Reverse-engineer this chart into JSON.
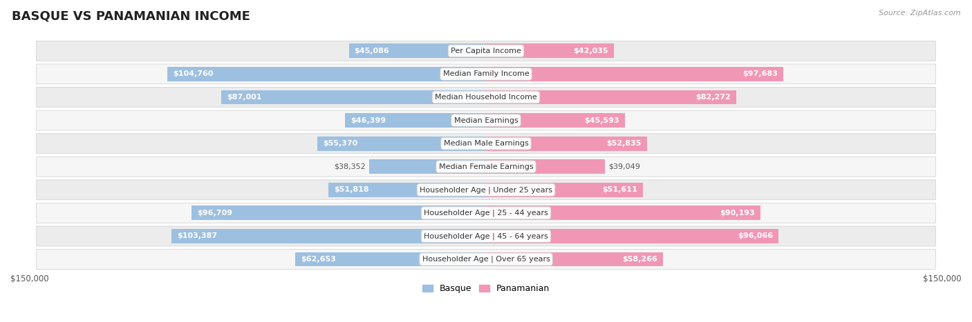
{
  "title": "BASQUE VS PANAMANIAN INCOME",
  "source": "Source: ZipAtlas.com",
  "categories": [
    "Per Capita Income",
    "Median Family Income",
    "Median Household Income",
    "Median Earnings",
    "Median Male Earnings",
    "Median Female Earnings",
    "Householder Age | Under 25 years",
    "Householder Age | 25 - 44 years",
    "Householder Age | 45 - 64 years",
    "Householder Age | Over 65 years"
  ],
  "basque_values": [
    45086,
    104760,
    87001,
    46399,
    55370,
    38352,
    51818,
    96709,
    103387,
    62653
  ],
  "panamanian_values": [
    42035,
    97683,
    82272,
    45593,
    52835,
    39049,
    51611,
    90193,
    96066,
    58266
  ],
  "basque_labels": [
    "$45,086",
    "$104,760",
    "$87,001",
    "$46,399",
    "$55,370",
    "$38,352",
    "$51,818",
    "$96,709",
    "$103,387",
    "$62,653"
  ],
  "panamanian_labels": [
    "$42,035",
    "$97,683",
    "$82,272",
    "$45,593",
    "$52,835",
    "$39,049",
    "$51,611",
    "$90,193",
    "$96,066",
    "$58,266"
  ],
  "basque_color": "#9dbfe0",
  "panamanian_color": "#f097b5",
  "max_value": 150000,
  "bar_height": 0.62,
  "background_color": "#ffffff",
  "row_odd_color": "#f2f2f2",
  "row_even_color": "#e8e8e8",
  "title_fontsize": 13,
  "label_fontsize": 8,
  "category_fontsize": 8,
  "legend_fontsize": 9,
  "source_fontsize": 8,
  "inside_label_threshold": 0.28
}
